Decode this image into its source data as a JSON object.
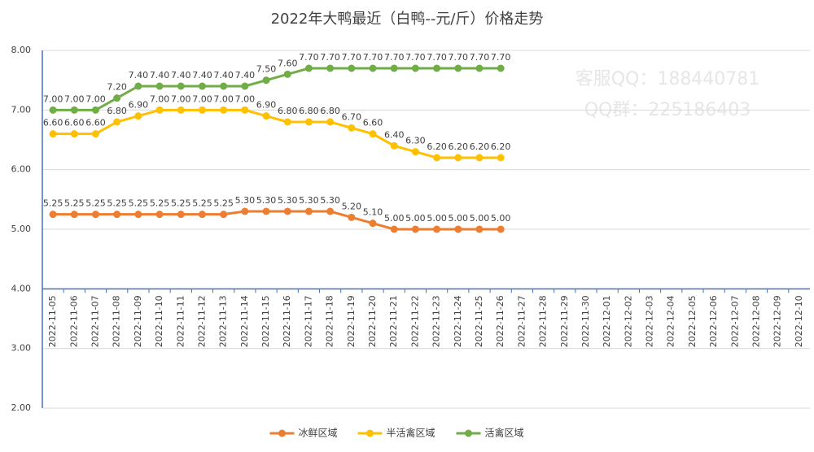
{
  "chart_data": {
    "type": "line",
    "title": "2022年大鸭最近（白鸭--元/斤）价格走势",
    "watermarks": [
      "客服QQ：188440781",
      "QQ群：225186403"
    ],
    "categories": [
      "2022-11-05",
      "2022-11-06",
      "2022-11-07",
      "2022-11-08",
      "2022-11-09",
      "2022-11-10",
      "2022-11-11",
      "2022-11-12",
      "2022-11-13",
      "2022-11-14",
      "2022-11-15",
      "2022-11-16",
      "2022-11-17",
      "2022-11-18",
      "2022-11-19",
      "2022-11-20",
      "2022-11-21",
      "2022-11-22",
      "2022-11-23",
      "2022-11-24",
      "2022-11-25",
      "2022-11-26",
      "2022-11-27",
      "2022-11-28",
      "2022-11-29",
      "2022-11-30",
      "2022-12-01",
      "2022-12-02",
      "2022-12-03",
      "2022-12-04",
      "2022-12-05",
      "2022-12-06",
      "2022-12-07",
      "2022-12-08",
      "2022-12-09",
      "2022-12-10"
    ],
    "series": [
      {
        "name": "冰鲜区域",
        "color": "#ed7d31",
        "values": [
          5.25,
          5.25,
          5.25,
          5.25,
          5.25,
          5.25,
          5.25,
          5.25,
          5.25,
          5.3,
          5.3,
          5.3,
          5.3,
          5.3,
          5.2,
          5.1,
          5,
          5,
          5,
          5,
          5,
          5,
          null,
          null,
          null,
          null,
          null,
          null,
          null,
          null,
          null,
          null,
          null,
          null,
          null,
          null
        ],
        "value_labels": [
          "5.25",
          "5.25",
          "5.25",
          "5.25",
          "5.25",
          "5.25",
          "5.25",
          "5.25",
          "5.25",
          "5.30",
          "5.30",
          "5.30",
          "5.30",
          "5.30",
          "5.20",
          "5.10",
          "5.00",
          "5.00",
          "5.00",
          "5.00",
          "5.00",
          "5.00",
          null,
          null,
          null,
          null,
          null,
          null,
          null,
          null,
          null,
          null,
          null,
          null,
          null,
          null
        ]
      },
      {
        "name": "半活禽区域",
        "color": "#ffc000",
        "values": [
          6.6,
          6.6,
          6.6,
          6.8,
          6.9,
          7,
          7,
          7,
          7,
          7,
          6.9,
          6.8,
          6.8,
          6.8,
          6.7,
          6.6,
          6.4,
          6.3,
          6.2,
          6.2,
          6.2,
          6.2,
          null,
          null,
          null,
          null,
          null,
          null,
          null,
          null,
          null,
          null,
          null,
          null,
          null,
          null
        ],
        "value_labels": [
          "6.60",
          "6.60",
          "6.60",
          "6.80",
          "6.90",
          "7.00",
          "7.00",
          "7.00",
          "7.00",
          "7.00",
          "6.90",
          "6.80",
          "6.80",
          "6.80",
          "6.70",
          "6.60",
          "6.40",
          "6.30",
          "6.20",
          "6.20",
          "6.20",
          "6.20",
          null,
          null,
          null,
          null,
          null,
          null,
          null,
          null,
          null,
          null,
          null,
          null,
          null,
          null
        ]
      },
      {
        "name": "活禽区域",
        "color": "#70ad47",
        "values": [
          7,
          7,
          7,
          7.2,
          7.4,
          7.4,
          7.4,
          7.4,
          7.4,
          7.4,
          7.5,
          7.6,
          7.7,
          7.7,
          7.7,
          7.7,
          7.7,
          7.7,
          7.7,
          7.7,
          7.7,
          7.7,
          null,
          null,
          null,
          null,
          null,
          null,
          null,
          null,
          null,
          null,
          null,
          null,
          null,
          null
        ],
        "value_labels": [
          "7.00",
          "7.00",
          "7.00",
          "7.20",
          "7.40",
          "7.40",
          "7.40",
          "7.40",
          "7.40",
          "7.40",
          "7.50",
          "7.60",
          "7.70",
          "7.70",
          "7.70",
          "7.70",
          "7.70",
          "7.70",
          "7.70",
          "7.70",
          "7.70",
          "7.70",
          null,
          null,
          null,
          null,
          null,
          null,
          null,
          null,
          null,
          null,
          null,
          null,
          null,
          null
        ]
      }
    ],
    "ylim": [
      2,
      8
    ],
    "yticks": [
      {
        "value": 2,
        "label": "2.00"
      },
      {
        "value": 3,
        "label": "3.00"
      },
      {
        "value": 4,
        "label": "4.00"
      },
      {
        "value": 5,
        "label": "5.00"
      },
      {
        "value": 6,
        "label": "6.00"
      },
      {
        "value": 7,
        "label": "7.00"
      },
      {
        "value": 8,
        "label": "8.00"
      }
    ],
    "x_axis_at": 4,
    "grid": true,
    "legend": "bottom"
  }
}
